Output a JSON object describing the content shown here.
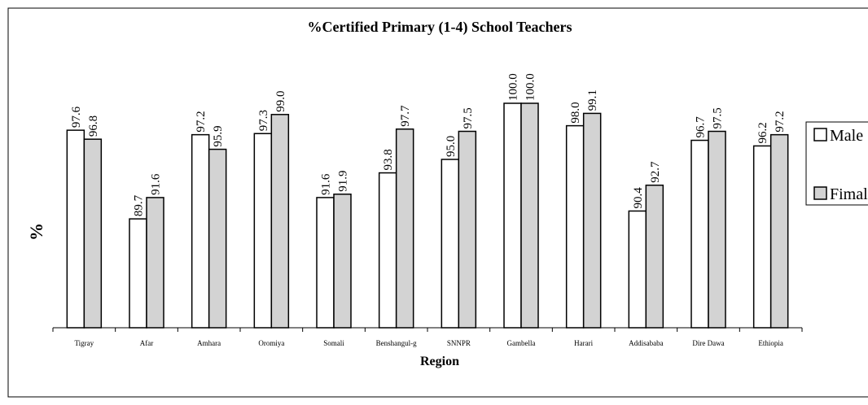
{
  "chart_data": {
    "type": "bar",
    "title": "%Certified Primary (1-4) School Teachers",
    "x_label": "Region",
    "y_label": "%",
    "categories": [
      "Tigray",
      "Afar",
      "Amhara",
      "Oromiya",
      "Somali",
      "Benshangul-g",
      "SNNPR",
      "Gambella",
      "Harari",
      "Addisababa",
      "Dire Dawa",
      "Ethiopia"
    ],
    "series": [
      {
        "name": "Male",
        "color": "#ffffff",
        "values": [
          97.6,
          89.7,
          97.2,
          97.3,
          91.6,
          93.8,
          95.0,
          100.0,
          98.0,
          90.4,
          96.7,
          96.2
        ],
        "value_labels": [
          "97.6",
          "89.7",
          "97.2",
          "97.3",
          "91.6",
          "93.8",
          "95.0",
          "100.0",
          "98.0",
          "90.4",
          "96.7",
          "96.2"
        ]
      },
      {
        "name": "Fimale",
        "color": "#d3d3d3",
        "values": [
          96.8,
          91.6,
          95.9,
          99.0,
          91.9,
          97.7,
          97.5,
          100.0,
          99.1,
          92.7,
          97.5,
          97.2
        ],
        "value_labels": [
          "96.8",
          "91.6",
          "95.9",
          "99.0",
          "91.9",
          "97.7",
          "97.5",
          "100.0",
          "99.1",
          "92.7",
          "97.5",
          "97.2"
        ]
      }
    ],
    "ylim": [
      80,
      100
    ],
    "legend": "right"
  }
}
